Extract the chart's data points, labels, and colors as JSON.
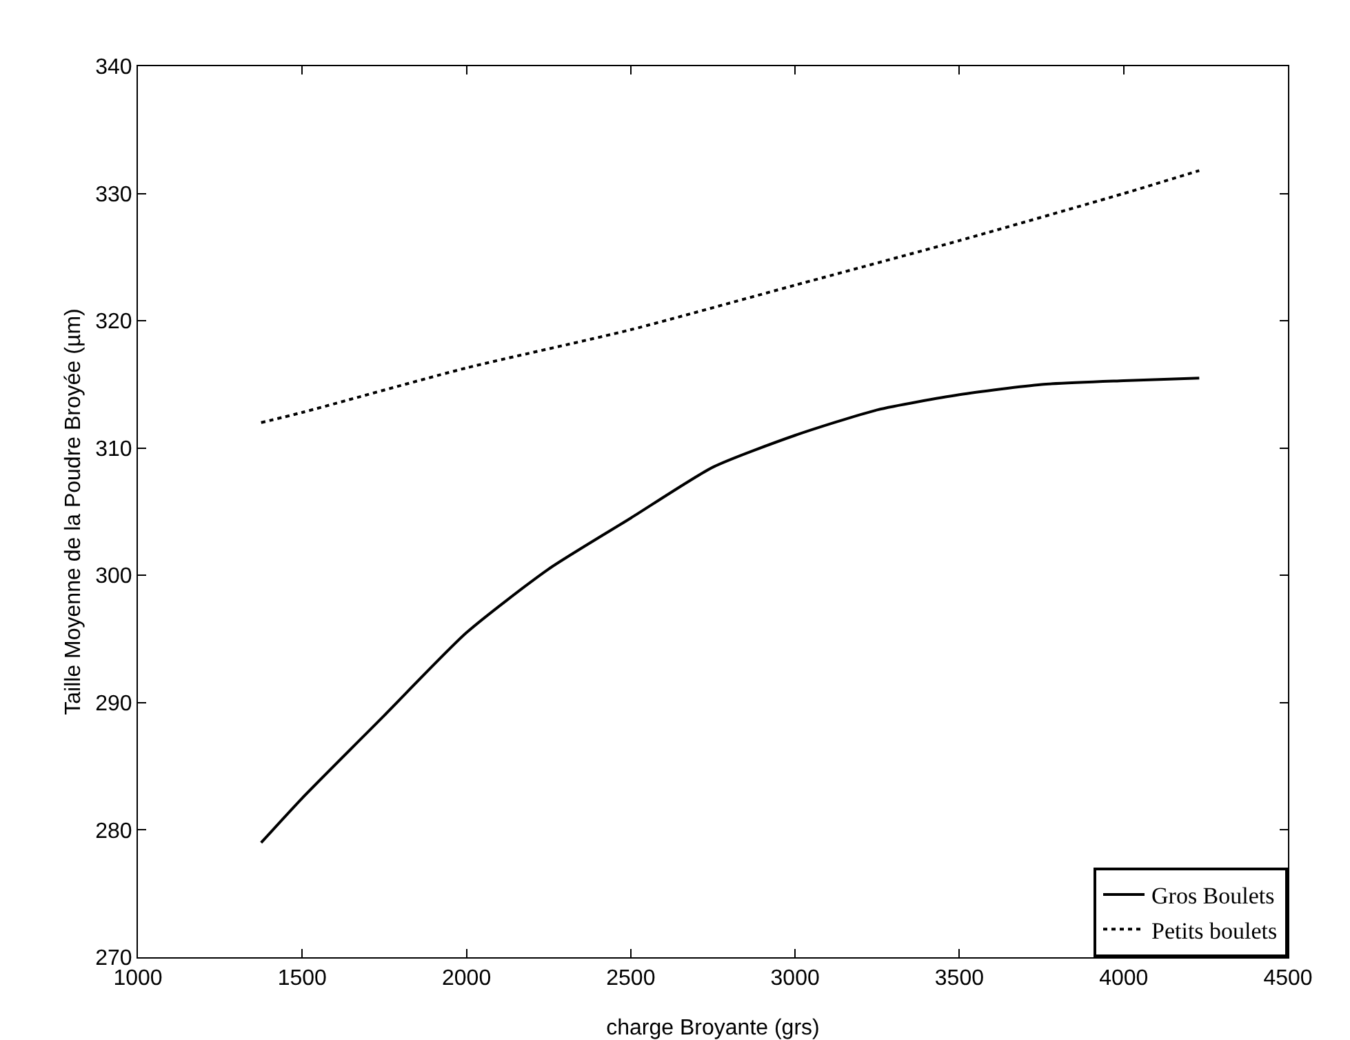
{
  "chart_data": {
    "type": "line",
    "xlabel": "charge Broyante (grs)",
    "ylabel": "Taille Moyenne de la Poudre Broyée (µm)",
    "xlim": [
      1000,
      4500
    ],
    "xticks": [
      1000,
      1500,
      2000,
      2500,
      3000,
      3500,
      4000,
      4500
    ],
    "ylim": [
      270,
      340
    ],
    "yticks": [
      270,
      280,
      290,
      300,
      310,
      320,
      330,
      340
    ],
    "grid": false,
    "legend": "bottom right",
    "series": [
      {
        "name": "Gros Boulets",
        "color": "#000000",
        "line_style": "solid",
        "x": [
          1375,
          1500,
          1750,
          2000,
          2250,
          2500,
          2750,
          3000,
          3250,
          3500,
          3750,
          4000,
          4230
        ],
        "values": [
          279,
          282.5,
          289,
          295.5,
          300.5,
          304.5,
          308.5,
          311,
          313,
          314.2,
          315,
          315.3,
          315.5
        ]
      },
      {
        "name": "Petits boulets",
        "color": "#000000",
        "line_style": "dotted",
        "x": [
          1375,
          1500,
          2000,
          2500,
          3000,
          3500,
          4000,
          4230
        ],
        "values": [
          312,
          312.8,
          316.3,
          319.3,
          322.8,
          326.3,
          330,
          331.8
        ]
      }
    ]
  }
}
